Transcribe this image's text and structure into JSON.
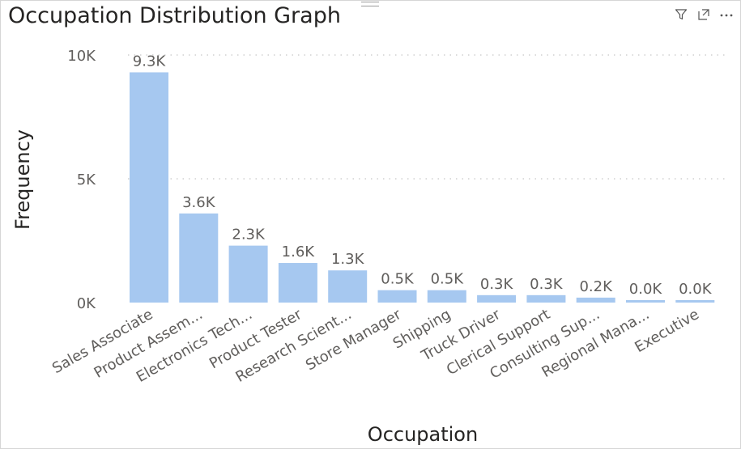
{
  "visual": {
    "title": "Occupation Distribution Graph",
    "toolbar": {
      "filter_icon": "filter-icon",
      "focus_icon": "focus-mode-icon",
      "more_icon": "more-options-icon"
    }
  },
  "chart_data": {
    "type": "bar",
    "title": "Occupation Distribution Graph",
    "xlabel": "Occupation",
    "ylabel": "Frequency",
    "ylim": [
      0,
      10000
    ],
    "yticks": [
      {
        "value": 0,
        "label": "0K"
      },
      {
        "value": 5000,
        "label": "5K"
      },
      {
        "value": 10000,
        "label": "10K"
      }
    ],
    "grid": true,
    "bar_color": "#a6c8f0",
    "categories": [
      "Sales Associate",
      "Product Assem...",
      "Electronics Tech...",
      "Product Tester",
      "Research Scient...",
      "Store Manager",
      "Shipping",
      "Truck Driver",
      "Clerical Support",
      "Consulting Sup...",
      "Regional Mana...",
      "Executive"
    ],
    "values": [
      9300,
      3600,
      2300,
      1600,
      1300,
      500,
      500,
      300,
      300,
      200,
      40,
      20
    ],
    "data_labels": [
      "9.3K",
      "3.6K",
      "2.3K",
      "1.6K",
      "1.3K",
      "0.5K",
      "0.5K",
      "0.3K",
      "0.3K",
      "0.2K",
      "0.0K",
      "0.0K"
    ]
  }
}
